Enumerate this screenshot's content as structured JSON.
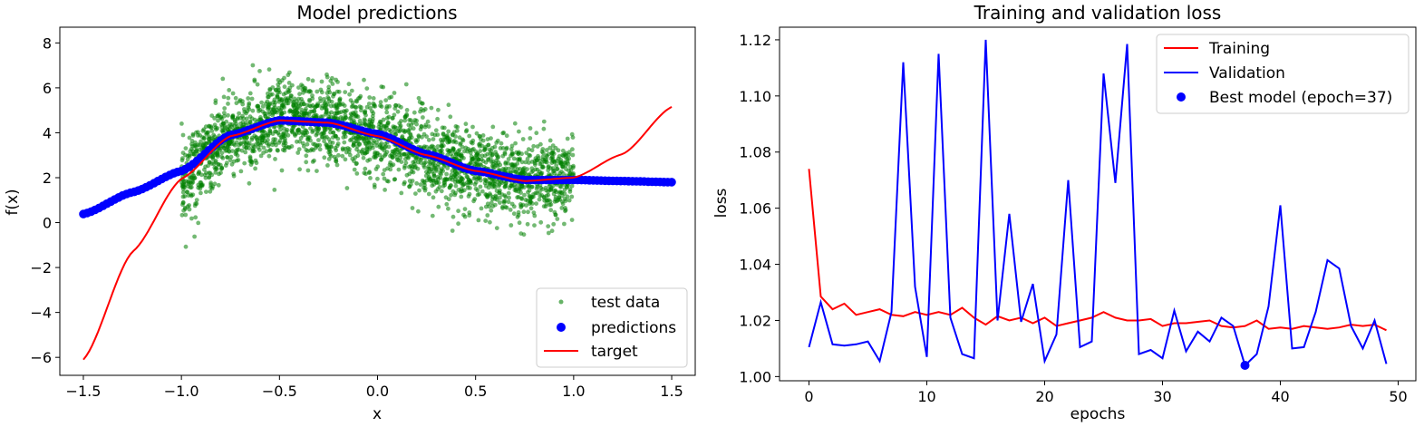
{
  "chart_data": [
    {
      "type": "scatter",
      "title": "Model predictions",
      "xlabel": "x",
      "ylabel": "f(x)",
      "xlim": [
        -1.62,
        1.62
      ],
      "ylim": [
        -6.8,
        8.7
      ],
      "xticks": [
        -1.5,
        -1.0,
        -0.5,
        0.0,
        0.5,
        1.0,
        1.5
      ],
      "xtick_labels": [
        "−1.5",
        "−1.0",
        "−0.5",
        "0.0",
        "0.5",
        "1.0",
        "1.5"
      ],
      "yticks": [
        -6,
        -4,
        -2,
        0,
        2,
        4,
        6,
        8
      ],
      "ytick_labels": [
        "−6",
        "−4",
        "−2",
        "0",
        "2",
        "4",
        "6",
        "8"
      ],
      "legend_position": "lower-right",
      "series": [
        {
          "name": "test data",
          "kind": "scatter",
          "color": "#008000",
          "x_range": [
            -1.0,
            1.0
          ],
          "noise_sd": 0.9,
          "n_points": 2600,
          "trend": "target"
        },
        {
          "name": "predictions",
          "kind": "scatter",
          "color": "#0000ff",
          "x": [
            -1.5,
            -1.25,
            -1.0,
            -0.75,
            -0.5,
            -0.25,
            0.0,
            0.25,
            0.5,
            0.75,
            1.0,
            1.25,
            1.5
          ],
          "y": [
            0.38,
            1.35,
            2.3,
            3.9,
            4.55,
            4.45,
            3.95,
            3.05,
            2.3,
            1.9,
            1.9,
            1.85,
            1.8
          ]
        },
        {
          "name": "target",
          "kind": "line",
          "color": "#ff0000",
          "x": [
            -1.5,
            -1.25,
            -1.0,
            -0.75,
            -0.5,
            -0.25,
            0.0,
            0.25,
            0.5,
            0.75,
            1.0,
            1.25,
            1.5
          ],
          "y": [
            -6.1,
            -1.3,
            1.95,
            3.85,
            4.55,
            4.45,
            3.85,
            3.0,
            2.3,
            1.85,
            2.0,
            3.05,
            5.15
          ]
        }
      ]
    },
    {
      "type": "line",
      "title": "Training and validation loss",
      "xlabel": "epochs",
      "ylabel": "loss",
      "xlim": [
        -2.5,
        51.5
      ],
      "ylim": [
        0.9985,
        1.1245
      ],
      "xticks": [
        0,
        10,
        20,
        30,
        40,
        50
      ],
      "xtick_labels": [
        "0",
        "10",
        "20",
        "30",
        "40",
        "50"
      ],
      "yticks": [
        1.0,
        1.02,
        1.04,
        1.06,
        1.08,
        1.1,
        1.12
      ],
      "ytick_labels": [
        "1.00",
        "1.02",
        "1.04",
        "1.06",
        "1.08",
        "1.10",
        "1.12"
      ],
      "legend_position": "upper-right",
      "x": [
        0,
        1,
        2,
        3,
        4,
        5,
        6,
        7,
        8,
        9,
        10,
        11,
        12,
        13,
        14,
        15,
        16,
        17,
        18,
        19,
        20,
        21,
        22,
        23,
        24,
        25,
        26,
        27,
        28,
        29,
        30,
        31,
        32,
        33,
        34,
        35,
        36,
        37,
        38,
        39,
        40,
        41,
        42,
        43,
        44,
        45,
        46,
        47,
        48,
        49
      ],
      "series": [
        {
          "name": "Training",
          "color": "#ff0000",
          "values": [
            1.074,
            1.0285,
            1.024,
            1.026,
            1.022,
            1.023,
            1.024,
            1.022,
            1.0215,
            1.023,
            1.022,
            1.023,
            1.022,
            1.0245,
            1.021,
            1.0185,
            1.0215,
            1.02,
            1.021,
            1.019,
            1.021,
            1.018,
            1.019,
            1.02,
            1.021,
            1.023,
            1.021,
            1.02,
            1.02,
            1.0205,
            1.018,
            1.019,
            1.019,
            1.0195,
            1.02,
            1.018,
            1.0175,
            1.018,
            1.02,
            1.017,
            1.0175,
            1.017,
            1.018,
            1.0175,
            1.017,
            1.0175,
            1.0185,
            1.018,
            1.0185,
            1.0165
          ]
        },
        {
          "name": "Validation",
          "color": "#0000ff",
          "values": [
            1.0105,
            1.0265,
            1.0115,
            1.011,
            1.0115,
            1.0125,
            1.0055,
            1.023,
            1.112,
            1.032,
            1.007,
            1.115,
            1.021,
            1.008,
            1.0065,
            1.12,
            1.02,
            1.058,
            1.0195,
            1.033,
            1.0055,
            1.015,
            1.07,
            1.0105,
            1.0125,
            1.108,
            1.069,
            1.1185,
            1.008,
            1.0095,
            1.0065,
            1.0235,
            1.009,
            1.016,
            1.0125,
            1.021,
            1.018,
            1.004,
            1.008,
            1.025,
            1.061,
            1.01,
            1.0105,
            1.023,
            1.0415,
            1.0385,
            1.018,
            1.01,
            1.02,
            1.0045
          ]
        },
        {
          "name": "Best model (epoch=37)",
          "color": "#0000ff",
          "kind": "point",
          "x": [
            37
          ],
          "values": [
            1.004
          ]
        }
      ]
    }
  ]
}
